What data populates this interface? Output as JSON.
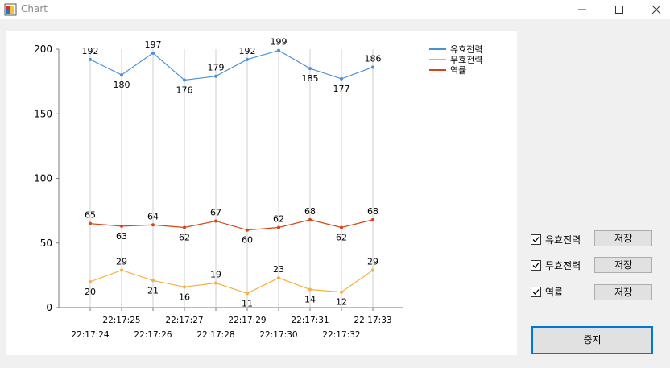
{
  "window": {
    "title": "Chart"
  },
  "controls": {
    "items": [
      {
        "label": "유효전력",
        "checked": true,
        "save_label": "저장"
      },
      {
        "label": "무효전력",
        "checked": true,
        "save_label": "저장"
      },
      {
        "label": "역률",
        "checked": true,
        "save_label": "저장"
      }
    ],
    "stop_label": "중지"
  },
  "chart_data": {
    "type": "line",
    "x": [
      "22:17:24",
      "22:17:25",
      "22:17:26",
      "22:17:27",
      "22:17:28",
      "22:17:29",
      "22:17:30",
      "22:17:31",
      "22:17:32",
      "22:17:33"
    ],
    "ylim": [
      0,
      200
    ],
    "yticks": [
      0,
      50,
      100,
      150,
      200
    ],
    "grid": "vertical",
    "legend_position": "top-right",
    "series": [
      {
        "name": "유효전력",
        "color": "#4a90d9",
        "values": [
          192,
          180,
          197,
          176,
          179,
          192,
          199,
          185,
          177,
          186
        ]
      },
      {
        "name": "무효전력",
        "color": "#f5b041",
        "values": [
          20,
          29,
          21,
          16,
          19,
          11,
          23,
          14,
          12,
          29
        ]
      },
      {
        "name": "역률",
        "color": "#d84315",
        "values": [
          65,
          63,
          64,
          62,
          67,
          60,
          62,
          68,
          62,
          68
        ]
      }
    ]
  }
}
